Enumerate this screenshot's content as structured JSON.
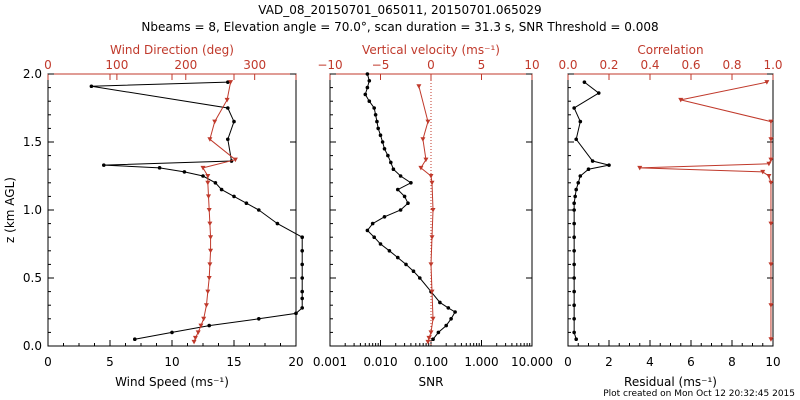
{
  "title_line1": "VAD_08_20150701_065011, 20150701.065029",
  "title_line2": "Nbeams = 8, Elevation angle = 70.0°, scan duration = 31.3 s, SNR Threshold = 0.008",
  "footer": "Plot created on Mon Oct 12 20:32:45 2015",
  "colors": {
    "primary": "#000000",
    "secondary": "#c0392b"
  },
  "chart_data": [
    {
      "type": "scatter",
      "panel": "wind",
      "ylabel": "z (km AGL)",
      "ylim": [
        0,
        2.0
      ],
      "yticks": [
        "0.0",
        "0.5",
        "1.0",
        "1.5",
        "2.0"
      ],
      "xlabel_bottom": "Wind Speed (ms⁻¹)",
      "xlim_bottom": [
        0,
        20
      ],
      "xticks_bottom": [
        "0",
        "5",
        "10",
        "15",
        "20"
      ],
      "xlabel_top": "Wind Direction (deg)",
      "xlim_top": [
        0,
        360
      ],
      "xticks_top": [
        "0",
        "100",
        "200",
        "300"
      ],
      "series": [
        {
          "axis": "bottom",
          "z": [
            0.05,
            0.1,
            0.15,
            0.2,
            0.24,
            0.28,
            0.35,
            0.4,
            0.5,
            0.6,
            0.7,
            0.8,
            0.9,
            1.0,
            1.05,
            1.1,
            1.15,
            1.2,
            1.25,
            1.28,
            1.31,
            1.33,
            1.36,
            1.52,
            1.65,
            1.75,
            1.91,
            1.94
          ],
          "values": [
            7.0,
            10.0,
            13.0,
            17.0,
            20.0,
            20.5,
            20.5,
            20.5,
            20.5,
            20.5,
            20.5,
            20.5,
            18.5,
            17.0,
            16.0,
            15.0,
            14.0,
            13.5,
            12.5,
            11.0,
            9.0,
            4.5,
            14.8,
            14.5,
            15.0,
            14.5,
            3.5,
            14.5
          ]
        },
        {
          "axis": "top",
          "z": [
            0.03,
            0.06,
            0.1,
            0.15,
            0.2,
            0.3,
            0.4,
            0.5,
            0.6,
            0.7,
            0.8,
            0.9,
            1.0,
            1.1,
            1.2,
            1.25,
            1.31,
            1.37,
            1.52,
            1.65,
            1.81,
            1.94
          ],
          "values": [
            212,
            214,
            218,
            222,
            226,
            230,
            232,
            234,
            235,
            236,
            236,
            235,
            234,
            233,
            232,
            232,
            225,
            272,
            235,
            242,
            260,
            265
          ]
        }
      ]
    },
    {
      "type": "scatter",
      "panel": "vertical",
      "xlabel_bottom": "SNR",
      "xscale_bottom": "log",
      "xlim_bottom": [
        0.001,
        10
      ],
      "xticks_bottom": [
        "0.001",
        "0.010",
        "0.100",
        "1.000",
        "10.000"
      ],
      "xlabel_top": "Vertical velocity (ms⁻¹)",
      "xlim_top": [
        -10,
        10
      ],
      "xticks_top": [
        "−10",
        "−5",
        "0",
        "5",
        "10"
      ],
      "series": [
        {
          "axis": "bottom",
          "z": [
            0.05,
            0.1,
            0.15,
            0.2,
            0.25,
            0.28,
            0.32,
            0.4,
            0.5,
            0.55,
            0.6,
            0.65,
            0.7,
            0.75,
            0.8,
            0.85,
            0.9,
            0.95,
            1.0,
            1.05,
            1.1,
            1.15,
            1.2,
            1.25,
            1.3,
            1.35,
            1.4,
            1.45,
            1.5,
            1.55,
            1.6,
            1.65,
            1.7,
            1.75,
            1.8,
            1.85,
            1.9,
            1.95,
            2.0
          ],
          "values": [
            0.11,
            0.14,
            0.2,
            0.25,
            0.3,
            0.22,
            0.15,
            0.1,
            0.06,
            0.045,
            0.032,
            0.022,
            0.015,
            0.01,
            0.0075,
            0.0055,
            0.007,
            0.012,
            0.025,
            0.035,
            0.03,
            0.022,
            0.04,
            0.025,
            0.018,
            0.016,
            0.014,
            0.012,
            0.011,
            0.01,
            0.009,
            0.0085,
            0.008,
            0.0075,
            0.006,
            0.005,
            0.0055,
            0.006,
            0.0055
          ]
        },
        {
          "axis": "top",
          "z": [
            0.03,
            0.06,
            0.1,
            0.2,
            0.4,
            0.6,
            0.8,
            1.0,
            1.2,
            1.25,
            1.31,
            1.37,
            1.52,
            1.65,
            1.91
          ],
          "values": [
            -0.3,
            -0.2,
            0,
            0.2,
            0.1,
            0,
            0.1,
            0.2,
            0.1,
            0,
            -1.0,
            -0.5,
            -0.8,
            -0.3,
            -1.2
          ]
        }
      ]
    },
    {
      "type": "scatter",
      "panel": "quality",
      "xlabel_bottom": "Residual (ms⁻¹)",
      "xlim_bottom": [
        0,
        10
      ],
      "xticks_bottom": [
        "0",
        "2",
        "4",
        "6",
        "8",
        "10"
      ],
      "xlabel_top": "Correlation",
      "xlim_top": [
        0,
        1.0
      ],
      "xticks_top": [
        "0.0",
        "0.2",
        "0.4",
        "0.6",
        "0.8",
        "1.0"
      ],
      "series": [
        {
          "axis": "bottom",
          "z": [
            0.05,
            0.1,
            0.2,
            0.3,
            0.4,
            0.5,
            0.6,
            0.7,
            0.8,
            0.9,
            1.0,
            1.05,
            1.1,
            1.15,
            1.2,
            1.25,
            1.3,
            1.33,
            1.36,
            1.52,
            1.65,
            1.75,
            1.86,
            1.94
          ],
          "values": [
            0.4,
            0.3,
            0.3,
            0.3,
            0.3,
            0.3,
            0.3,
            0.3,
            0.3,
            0.3,
            0.3,
            0.3,
            0.35,
            0.4,
            0.5,
            0.6,
            1.0,
            2.0,
            1.2,
            0.4,
            0.6,
            0.3,
            1.5,
            0.8
          ]
        },
        {
          "axis": "top",
          "z": [
            0.05,
            0.3,
            0.6,
            0.9,
            1.2,
            1.25,
            1.28,
            1.31,
            1.34,
            1.37,
            1.52,
            1.65,
            1.81,
            1.94
          ],
          "values": [
            0.99,
            0.99,
            0.99,
            0.99,
            0.99,
            0.98,
            0.95,
            0.35,
            0.98,
            0.99,
            0.99,
            0.99,
            0.55,
            0.97
          ]
        }
      ]
    }
  ]
}
